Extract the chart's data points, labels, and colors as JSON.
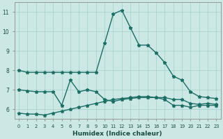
{
  "xlabel": "Humidex (Indice chaleur)",
  "background_color": "#cce8e4",
  "grid_color": "#aad4d0",
  "line_color": "#1a6e64",
  "x_values": [
    0,
    1,
    2,
    3,
    4,
    5,
    6,
    7,
    8,
    9,
    10,
    11,
    12,
    13,
    14,
    15,
    16,
    17,
    18,
    19,
    20,
    21,
    22,
    23
  ],
  "line1": [
    8.0,
    7.9,
    7.9,
    7.9,
    7.9,
    7.9,
    7.9,
    7.9,
    7.9,
    7.9,
    9.4,
    10.9,
    11.1,
    10.2,
    9.3,
    9.3,
    8.9,
    8.4,
    7.7,
    7.5,
    6.9,
    6.65,
    6.6,
    6.55
  ],
  "line2": [
    7.0,
    6.95,
    6.9,
    6.9,
    6.9,
    6.2,
    7.5,
    6.9,
    7.0,
    6.9,
    6.5,
    6.4,
    6.5,
    6.55,
    6.6,
    6.6,
    6.6,
    6.6,
    6.5,
    6.5,
    6.3,
    6.25,
    6.3,
    6.25
  ],
  "line3": [
    5.8,
    5.75,
    5.75,
    5.7,
    5.8,
    5.9,
    6.0,
    6.1,
    6.2,
    6.3,
    6.4,
    6.5,
    6.55,
    6.6,
    6.65,
    6.65,
    6.6,
    6.5,
    6.2,
    6.2,
    6.1,
    6.2,
    6.2,
    6.2
  ],
  "ylim": [
    5.5,
    11.5
  ],
  "xlim": [
    -0.5,
    23.5
  ],
  "yticks": [
    6,
    7,
    8,
    9,
    10,
    11
  ],
  "xticks": [
    0,
    1,
    2,
    3,
    4,
    5,
    6,
    7,
    8,
    9,
    10,
    11,
    12,
    13,
    14,
    15,
    16,
    17,
    18,
    19,
    20,
    21,
    22,
    23
  ]
}
